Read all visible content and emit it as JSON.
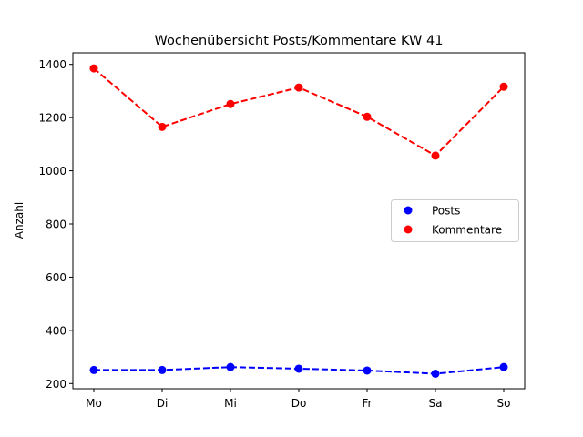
{
  "chart_data": {
    "type": "line",
    "title": "Wochenübersicht Posts/Kommentare KW 41",
    "xlabel": "",
    "ylabel": "Anzahl",
    "categories": [
      "Mo",
      "Di",
      "Mi",
      "Do",
      "Fr",
      "Sa",
      "So"
    ],
    "series": [
      {
        "name": "Posts",
        "color": "#0000ff",
        "style": "dashed line with circle markers",
        "values": [
          251,
          251,
          262,
          256,
          249,
          237,
          262
        ]
      },
      {
        "name": "Kommentare",
        "color": "#ff0000",
        "style": "dashed line with circle markers",
        "values": [
          1385,
          1165,
          1251,
          1313,
          1203,
          1057,
          1316
        ]
      }
    ],
    "yticks": [
      200,
      400,
      600,
      800,
      1000,
      1200,
      1400
    ],
    "ylim": [
      180,
      1440
    ],
    "grid": false,
    "legend": {
      "position": "center right",
      "entries": [
        "Posts",
        "Kommentare"
      ]
    }
  }
}
